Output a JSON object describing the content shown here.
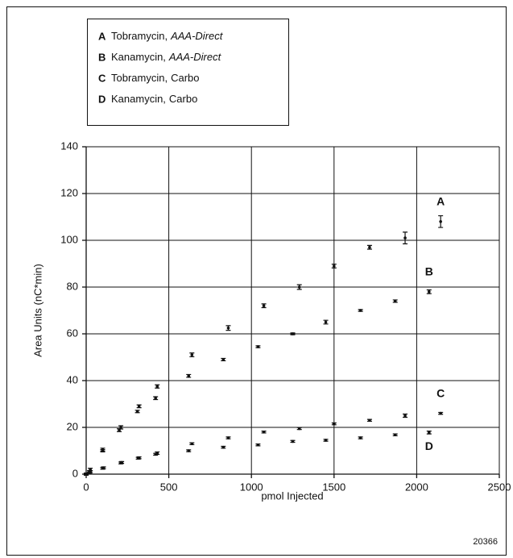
{
  "chart_data": {
    "type": "scatter",
    "xlabel": "pmol Injected",
    "ylabel": "Area Units (nC*min)",
    "figure_number": "20366",
    "xlim": [
      0,
      2500
    ],
    "xticks": [
      0,
      500,
      1000,
      1500,
      2000,
      2500
    ],
    "ylim": [
      0,
      140
    ],
    "yticks": [
      0,
      20,
      40,
      60,
      80,
      100,
      120,
      140
    ],
    "grid": true,
    "series": [
      {
        "letter": "A",
        "name": "Tobramycin,",
        "method": "AAA-Direct",
        "method_style": "italic",
        "color": "#111111",
        "label_position": "above",
        "x": [
          0,
          25,
          100,
          210,
          320,
          430,
          640,
          860,
          1075,
          1290,
          1500,
          1715,
          1930,
          2145
        ],
        "values": [
          0,
          2,
          10.5,
          20,
          29,
          37.5,
          51,
          62.5,
          72,
          80,
          89,
          97,
          101,
          108
        ],
        "errors": [
          0.5,
          0.5,
          0.6,
          0.7,
          0.6,
          0.7,
          0.8,
          1,
          0.8,
          1,
          0.8,
          0.8,
          2.5,
          2.5
        ]
      },
      {
        "letter": "B",
        "name": "Kanamycin,",
        "method": "AAA-Direct",
        "method_style": "italic",
        "color": "#111111",
        "label_position": "above",
        "x": [
          0,
          20,
          100,
          200,
          310,
          420,
          620,
          830,
          1040,
          1250,
          1450,
          1660,
          1870,
          2075
        ],
        "values": [
          0,
          1,
          10,
          18.8,
          26.8,
          32.5,
          42,
          49,
          54.5,
          60,
          65,
          70,
          74,
          78
        ],
        "errors": [
          0.5,
          0.5,
          0.5,
          0.6,
          0.5,
          0.6,
          0.6,
          0.5,
          0.4,
          0.4,
          0.8,
          0.4,
          0.5,
          0.8
        ]
      },
      {
        "letter": "C",
        "name": "Tobramycin,",
        "method": "Carbo",
        "method_style": "normal",
        "color": "#111111",
        "label_position": "above",
        "x": [
          0,
          25,
          105,
          215,
          320,
          430,
          640,
          860,
          1075,
          1290,
          1500,
          1715,
          1930,
          2145
        ],
        "values": [
          0,
          1,
          2.7,
          5,
          7,
          9,
          13,
          15.5,
          18,
          19.5,
          21.5,
          23,
          25,
          26
        ],
        "errors": [
          0.5,
          0.4,
          0.4,
          0.4,
          0.4,
          0.5,
          0.4,
          0.4,
          0.4,
          0.4,
          0.4,
          0.4,
          0.7,
          0.4
        ]
      },
      {
        "letter": "D",
        "name": "Kanamycin,",
        "method": "Carbo",
        "method_style": "normal",
        "color": "#111111",
        "label_position": "below",
        "x": [
          0,
          20,
          100,
          210,
          315,
          420,
          620,
          830,
          1040,
          1250,
          1450,
          1660,
          1870,
          2075
        ],
        "values": [
          0,
          0.5,
          2.5,
          4.8,
          6.8,
          8.5,
          10,
          11.5,
          12.5,
          14,
          14.5,
          15.5,
          16.8,
          17.8
        ],
        "errors": [
          0.4,
          0.4,
          0.4,
          0.4,
          0.4,
          0.4,
          0.4,
          0.4,
          0.4,
          0.4,
          0.4,
          0.4,
          0.4,
          0.6
        ]
      }
    ]
  }
}
